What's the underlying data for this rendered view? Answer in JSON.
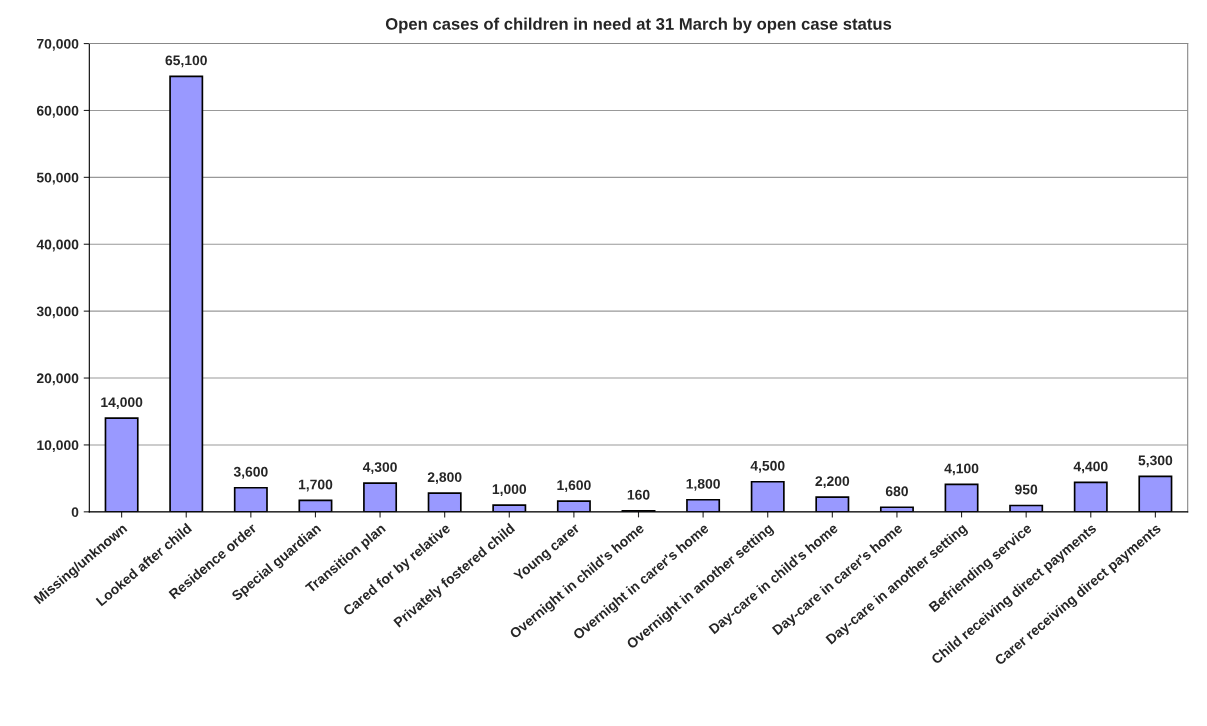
{
  "chart_data": {
    "type": "bar",
    "title": "Open cases of children in need at 31 March by open case status",
    "categories": [
      "Missing/unknown",
      "Looked after child",
      "Residence order",
      "Special guardian",
      "Transition plan",
      "Cared for by relative",
      "Privately fostered child",
      "Young carer",
      "Overnight in child's home",
      "Overnight in carer's home",
      "Overnight in another setting",
      "Day-care in child's home",
      "Day-care in carer's home",
      "Day-care in another setting",
      "Befriending service",
      "Child receiving direct payments",
      "Carer receiving direct payments"
    ],
    "values": [
      14000,
      65100,
      3600,
      1700,
      4300,
      2800,
      1000,
      1600,
      160,
      1800,
      4500,
      2200,
      680,
      4100,
      950,
      4400,
      5300
    ],
    "value_labels": [
      "14,000",
      "65,100",
      "3,600",
      "1,700",
      "4,300",
      "2,800",
      "1,000",
      "1,600",
      "160",
      "1,800",
      "4,500",
      "2,200",
      "680",
      "4,100",
      "950",
      "4,400",
      "5,300"
    ],
    "color": "#9999ff",
    "ylim": [
      0,
      70000
    ],
    "yticks": [
      {
        "value": 0,
        "label": "0"
      },
      {
        "value": 10000,
        "label": "10,000"
      },
      {
        "value": 20000,
        "label": "20,000"
      },
      {
        "value": 30000,
        "label": "30,000"
      },
      {
        "value": 40000,
        "label": "40,000"
      },
      {
        "value": 50000,
        "label": "50,000"
      },
      {
        "value": 60000,
        "label": "60,000"
      },
      {
        "value": 70000,
        "label": "70,000"
      }
    ],
    "grid": "y",
    "legend": false
  }
}
